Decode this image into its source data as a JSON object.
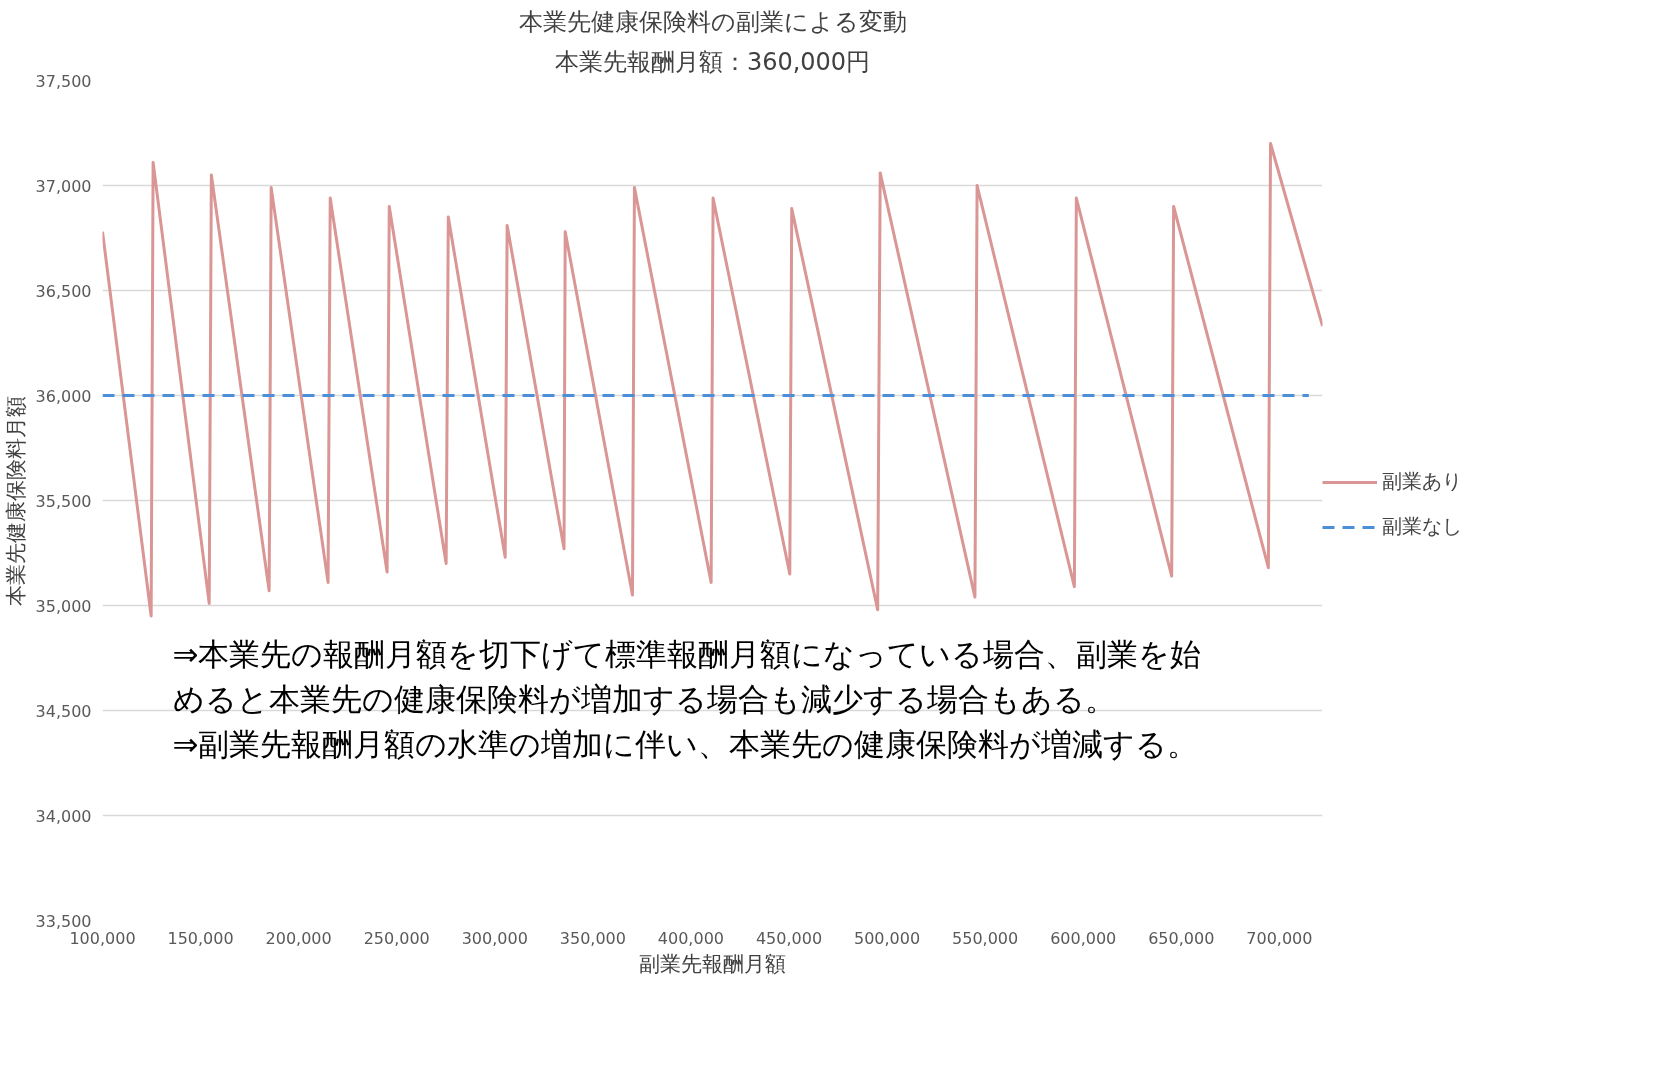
{
  "chart_data": {
    "type": "line",
    "title": "本業先健康保険料の副業による変動",
    "subtitle": "本業先報酬月額：360,000円",
    "xlabel": "副業先報酬月額",
    "ylabel": "本業先健康保険料月額",
    "xlim": [
      100000,
      722000
    ],
    "ylim": [
      33500,
      37500
    ],
    "xticks": [
      {
        "value": 100000,
        "label": "100,000"
      },
      {
        "value": 150000,
        "label": "150,000"
      },
      {
        "value": 200000,
        "label": "200,000"
      },
      {
        "value": 250000,
        "label": "250,000"
      },
      {
        "value": 300000,
        "label": "300,000"
      },
      {
        "value": 350000,
        "label": "350,000"
      },
      {
        "value": 400000,
        "label": "400,000"
      },
      {
        "value": 450000,
        "label": "450,000"
      },
      {
        "value": 500000,
        "label": "500,000"
      },
      {
        "value": 550000,
        "label": "550,000"
      },
      {
        "value": 600000,
        "label": "600,000"
      },
      {
        "value": 650000,
        "label": "650,000"
      },
      {
        "value": 700000,
        "label": "700,000"
      }
    ],
    "yticks": [
      {
        "value": 33500,
        "label": "33,500"
      },
      {
        "value": 34000,
        "label": "34,000"
      },
      {
        "value": 34500,
        "label": "34,500"
      },
      {
        "value": 35000,
        "label": "35,000"
      },
      {
        "value": 35500,
        "label": "35,500"
      },
      {
        "value": 36000,
        "label": "36,000"
      },
      {
        "value": 36500,
        "label": "36,500"
      },
      {
        "value": 37000,
        "label": "37,000"
      },
      {
        "value": 37500,
        "label": "37,500"
      }
    ],
    "grid": "y",
    "legend": "right",
    "marker": "none",
    "series": [
      {
        "name": "副業あり",
        "color": "#d99694",
        "line_style": "solid",
        "x": [
          100000,
          124800,
          125800,
          154400,
          155500,
          184960,
          186000,
          215000,
          216100,
          245100,
          246200,
          275200,
          276300,
          305300,
          306300,
          335300,
          335900,
          370200,
          371200,
          410300,
          411300,
          450400,
          451400,
          495200,
          496500,
          544800,
          545900,
          595500,
          596500,
          645100,
          646100,
          694400,
          695500,
          722000
        ],
        "values": [
          36780,
          34950,
          37110,
          35010,
          37050,
          35070,
          36990,
          35110,
          36940,
          35160,
          36900,
          35200,
          36850,
          35230,
          36810,
          35270,
          36780,
          35050,
          36990,
          35110,
          36940,
          35150,
          36890,
          34980,
          37060,
          35040,
          37000,
          35090,
          36940,
          35140,
          36900,
          35180,
          37200,
          36330
        ]
      },
      {
        "name": "副業なし",
        "color": "#4a8fd8",
        "line_style": "dashed",
        "x": [
          100000,
          715000
        ],
        "values": [
          36000,
          36000
        ]
      }
    ],
    "annotations": [
      "⇒本業先の報酬月額を切下げて標準報酬月額になっている場合、副業を始",
      "めると本業先の健康保険料が増加する場合も減少する場合もある。",
      "⇒副業先報酬月額の水準の増加に伴い、本業先の健康保険料が増減する。"
    ]
  }
}
